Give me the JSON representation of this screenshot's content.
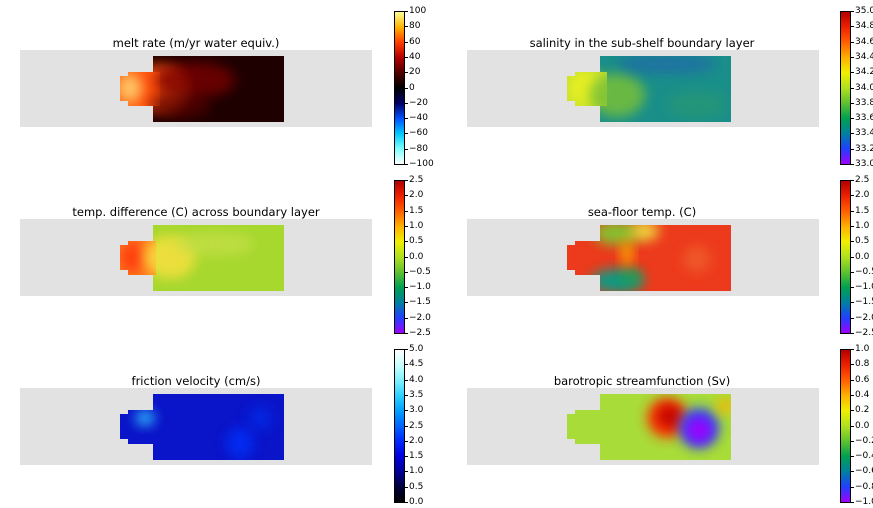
{
  "chart_data": [
    {
      "type": "heatmap",
      "title": "melt rate (m/yr water equiv.)",
      "colorbar": {
        "min": -100,
        "max": 100,
        "ticks": [
          "100",
          "80",
          "60",
          "40",
          "20",
          "0",
          "−20",
          "−40",
          "−60",
          "−80",
          "−100"
        ],
        "colors": [
          "#ffffff",
          "#7fffff",
          "#00c8ff",
          "#0050ff",
          "#000064",
          "#000000",
          "#500000",
          "#b40000",
          "#ff3c00",
          "#ffb400",
          "#ffff96"
        ]
      },
      "fields": {
        "main": "#1e0000",
        "mouth": "#ff6a18",
        "inlet": "#ffd070"
      }
    },
    {
      "type": "heatmap",
      "title": "salinity in the sub-shelf boundary layer",
      "colorbar": {
        "min": 33.0,
        "max": 35.0,
        "ticks": [
          "35.0",
          "34.8",
          "34.6",
          "34.4",
          "34.2",
          "34.0",
          "33.8",
          "33.6",
          "33.4",
          "33.2",
          "33.0"
        ],
        "colors": [
          "#a000ff",
          "#2040ff",
          "#0080a0",
          "#00a050",
          "#60c030",
          "#b0e020",
          "#f0f000",
          "#ffb000",
          "#ff6000",
          "#f02000",
          "#b00000"
        ]
      },
      "fields": {
        "main": "#1a8f8a",
        "mouth": "#c8e030",
        "inlet": "#e8f020"
      }
    },
    {
      "type": "heatmap",
      "title": "temp. difference (C) across boundary layer",
      "colorbar": {
        "min": -2.5,
        "max": 2.5,
        "ticks": [
          "2.5",
          "2.0",
          "1.5",
          "1.0",
          "0.5",
          "0.0",
          "−0.5",
          "−1.0",
          "−1.5",
          "−2.0",
          "−2.5"
        ],
        "colors": [
          "#a000ff",
          "#2040ff",
          "#0080a0",
          "#00a050",
          "#60c030",
          "#b0e020",
          "#f0f000",
          "#ffb000",
          "#ff6000",
          "#f02000",
          "#b00000"
        ]
      },
      "fields": {
        "main": "#a6d82e",
        "mouth": "#ff7a20",
        "inlet": "#f8e040"
      }
    },
    {
      "type": "heatmap",
      "title": "sea-floor temp. (C)",
      "colorbar": {
        "min": -2.5,
        "max": 2.5,
        "ticks": [
          "2.5",
          "2.0",
          "1.5",
          "1.0",
          "0.5",
          "0.0",
          "−0.5",
          "−1.0",
          "−1.5",
          "−2.0",
          "−2.5"
        ],
        "colors": [
          "#a000ff",
          "#2040ff",
          "#0080a0",
          "#00a050",
          "#60c030",
          "#b0e020",
          "#f0f000",
          "#ffb000",
          "#ff6000",
          "#f02000",
          "#b00000"
        ]
      },
      "fields": {
        "main": "#ec3a1c",
        "mouth": "#ec3a1c",
        "inlet": "#ec3a1c"
      }
    },
    {
      "type": "heatmap",
      "title": "friction velocity (cm/s)",
      "colorbar": {
        "min": 0.0,
        "max": 5.0,
        "ticks": [
          "5.0",
          "4.5",
          "4.0",
          "3.5",
          "3.0",
          "2.5",
          "2.0",
          "1.5",
          "1.0",
          "0.5",
          "0.0"
        ],
        "colors": [
          "#000000",
          "#00003c",
          "#000096",
          "#0000dc",
          "#0028ff",
          "#0064ff",
          "#00a0ff",
          "#30d0ff",
          "#80f0ff",
          "#c8ffff",
          "#ffffff"
        ]
      },
      "fields": {
        "main": "#0a14c8",
        "mouth": "#1040e0",
        "inlet": "#0a14c8"
      }
    },
    {
      "type": "heatmap",
      "title": "barotropic streamfunction (Sv)",
      "colorbar": {
        "min": -1.0,
        "max": 1.0,
        "ticks": [
          "1.0",
          "0.8",
          "0.6",
          "0.4",
          "0.2",
          "0.0",
          "−0.2",
          "−0.4",
          "−0.6",
          "−0.8",
          "−1.0"
        ],
        "colors": [
          "#a000ff",
          "#2040ff",
          "#0080a0",
          "#00a050",
          "#60c030",
          "#b0e020",
          "#f0f000",
          "#ffb000",
          "#ff6000",
          "#f02000",
          "#b00000"
        ]
      },
      "fields": {
        "main": "#a8dc38",
        "mouth": "#a8dc38",
        "inlet": "#a8dc38"
      }
    }
  ]
}
